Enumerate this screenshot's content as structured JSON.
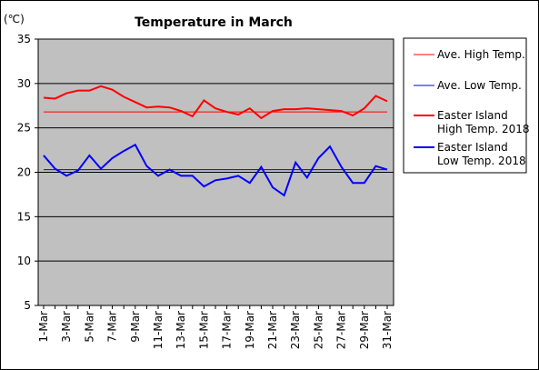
{
  "chart_data": {
    "type": "line",
    "title": "Temperature in March",
    "unit_label": "(℃)",
    "ylim": [
      5,
      35
    ],
    "yticks": [
      "35",
      "30",
      "25",
      "20",
      "15",
      "10",
      "5"
    ],
    "ytick_values": [
      35,
      30,
      25,
      20,
      15,
      10,
      5
    ],
    "x": [
      "1-Mar",
      "2-Mar",
      "3-Mar",
      "4-Mar",
      "5-Mar",
      "6-Mar",
      "7-Mar",
      "8-Mar",
      "9-Mar",
      "10-Mar",
      "11-Mar",
      "12-Mar",
      "13-Mar",
      "14-Mar",
      "15-Mar",
      "16-Mar",
      "17-Mar",
      "18-Mar",
      "19-Mar",
      "20-Mar",
      "21-Mar",
      "22-Mar",
      "23-Mar",
      "24-Mar",
      "25-Mar",
      "26-Mar",
      "27-Mar",
      "28-Mar",
      "29-Mar",
      "30-Mar",
      "31-Mar"
    ],
    "xtick_labels": [
      "1-Mar",
      "3-Mar",
      "5-Mar",
      "7-Mar",
      "9-Mar",
      "11-Mar",
      "13-Mar",
      "15-Mar",
      "17-Mar",
      "19-Mar",
      "21-Mar",
      "23-Mar",
      "25-Mar",
      "27-Mar",
      "29-Mar",
      "31-Mar"
    ],
    "grid": true,
    "plot_background": "#c0c0c0",
    "legend_position": "right",
    "series": [
      {
        "name": "Ave. High Temp.",
        "color": "#ff0000",
        "width": 1,
        "values": [
          26.8,
          26.8,
          26.8,
          26.8,
          26.8,
          26.8,
          26.8,
          26.8,
          26.8,
          26.8,
          26.8,
          26.8,
          26.8,
          26.8,
          26.8,
          26.8,
          26.8,
          26.8,
          26.8,
          26.8,
          26.8,
          26.8,
          26.8,
          26.8,
          26.8,
          26.8,
          26.8,
          26.8,
          26.8,
          26.8,
          26.8
        ]
      },
      {
        "name": "Ave. Low Temp.",
        "color": "#0000ff",
        "width": 1,
        "values": [
          20.3,
          20.3,
          20.3,
          20.3,
          20.3,
          20.3,
          20.3,
          20.3,
          20.3,
          20.3,
          20.3,
          20.3,
          20.3,
          20.3,
          20.3,
          20.3,
          20.3,
          20.3,
          20.3,
          20.3,
          20.3,
          20.3,
          20.3,
          20.3,
          20.3,
          20.3,
          20.3,
          20.3,
          20.3,
          20.3,
          20.3
        ]
      },
      {
        "name": "Easter Island High Temp. 2018",
        "legend_lines": [
          "Easter Island",
          "High Temp. 2018"
        ],
        "color": "#ff0000",
        "width": 2,
        "values": [
          28.4,
          28.3,
          28.9,
          29.2,
          29.2,
          29.7,
          29.3,
          28.5,
          27.9,
          27.3,
          27.4,
          27.3,
          26.9,
          26.3,
          28.1,
          27.2,
          26.8,
          26.5,
          27.2,
          26.1,
          26.9,
          27.1,
          27.1,
          27.2,
          27.1,
          27.0,
          26.9,
          26.4,
          27.2,
          28.6,
          28.0
        ]
      },
      {
        "name": "Easter Island Low Temp. 2018",
        "legend_lines": [
          "Easter Island",
          "Low Temp. 2018"
        ],
        "color": "#0000ff",
        "width": 2,
        "values": [
          21.9,
          20.4,
          19.6,
          20.2,
          21.9,
          20.4,
          21.6,
          22.4,
          23.1,
          20.7,
          19.6,
          20.3,
          19.6,
          19.6,
          18.4,
          19.1,
          19.3,
          19.6,
          18.8,
          20.6,
          18.3,
          17.4,
          21.1,
          19.4,
          21.6,
          22.9,
          20.6,
          18.8,
          18.8,
          20.7,
          20.3
        ]
      }
    ]
  }
}
